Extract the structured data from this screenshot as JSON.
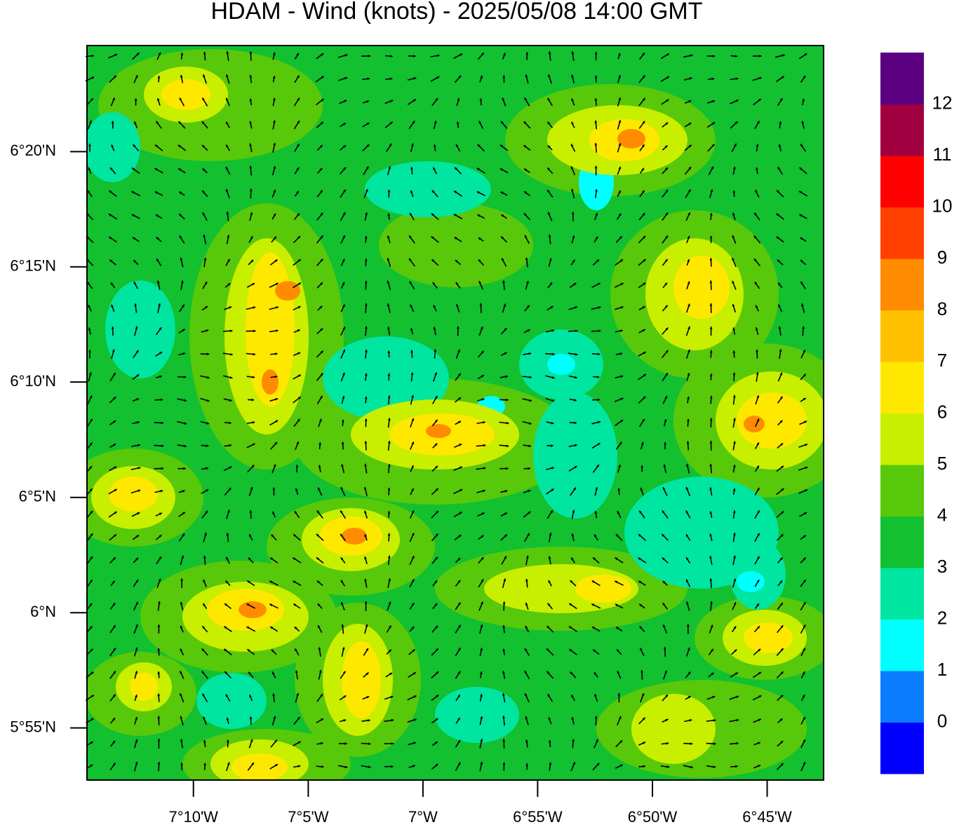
{
  "chart_data": {
    "type": "contour-map",
    "title": "HDAM - Wind (knots)  -  2025/05/08  14:00 GMT",
    "xlim": [
      -7.244,
      -6.709
    ],
    "ylim": [
      5.879,
      6.41
    ],
    "xticks": [
      {
        "value": -7.1667,
        "label": "7°10'W"
      },
      {
        "value": -7.0833,
        "label": "7°5'W"
      },
      {
        "value": -7,
        "label": "7°W"
      },
      {
        "value": -6.9167,
        "label": "6°55'W"
      },
      {
        "value": -6.8333,
        "label": "6°50'W"
      },
      {
        "value": -6.75,
        "label": "6°45'W"
      }
    ],
    "yticks": [
      {
        "value": 5.9167,
        "label": "5°55'N"
      },
      {
        "value": 6,
        "label": "6°N"
      },
      {
        "value": 6.0833,
        "label": "6°5'N"
      },
      {
        "value": 6.1667,
        "label": "6°10'N"
      },
      {
        "value": 6.25,
        "label": "6°15'N"
      },
      {
        "value": 6.3333,
        "label": "6°20'N"
      }
    ],
    "levels": [
      0,
      1,
      2,
      3,
      4,
      5,
      6,
      7,
      8,
      9,
      10,
      11,
      12
    ],
    "colors": [
      "#0000ff",
      "#0a7dff",
      "#00ffff",
      "#00e5a0",
      "#12c030",
      "#58c80a",
      "#c8ee00",
      "#ffe800",
      "#ffc000",
      "#ff8c00",
      "#ff4000",
      "#ff0000",
      "#a00040",
      "#5a0080"
    ]
  }
}
